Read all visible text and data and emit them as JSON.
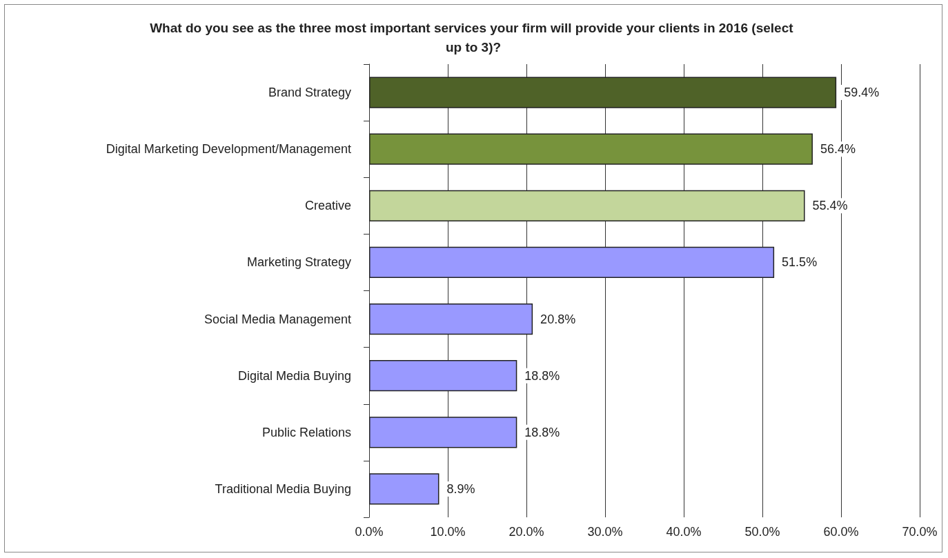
{
  "chart_data": {
    "type": "bar",
    "orientation": "horizontal",
    "title": "What do you see as the three most important services your firm will provide your clients in 2016 (select up to 3)?",
    "categories": [
      "Brand Strategy",
      "Digital Marketing Development/Management",
      "Creative",
      "Marketing Strategy",
      "Social Media Management",
      "Digital Media Buying",
      "Public Relations",
      "Traditional Media Buying"
    ],
    "values": [
      59.4,
      56.4,
      55.4,
      51.5,
      20.8,
      18.8,
      18.8,
      8.9
    ],
    "value_labels": [
      "59.4%",
      "56.4%",
      "55.4%",
      "51.5%",
      "20.8%",
      "18.8%",
      "18.8%",
      "8.9%"
    ],
    "colors": [
      "#4f6228",
      "#77933c",
      "#c3d69b",
      "#9999ff",
      "#9999ff",
      "#9999ff",
      "#9999ff",
      "#9999ff"
    ],
    "xlim": [
      0,
      70
    ],
    "xticks": [
      {
        "value": 0,
        "label": "0.0%"
      },
      {
        "value": 10,
        "label": "10.0%"
      },
      {
        "value": 20,
        "label": "20.0%"
      },
      {
        "value": 30,
        "label": "30.0%"
      },
      {
        "value": 40,
        "label": "40.0%"
      },
      {
        "value": 50,
        "label": "50.0%"
      },
      {
        "value": 60,
        "label": "60.0%"
      },
      {
        "value": 70,
        "label": "70.0%"
      }
    ],
    "grid": "x"
  }
}
